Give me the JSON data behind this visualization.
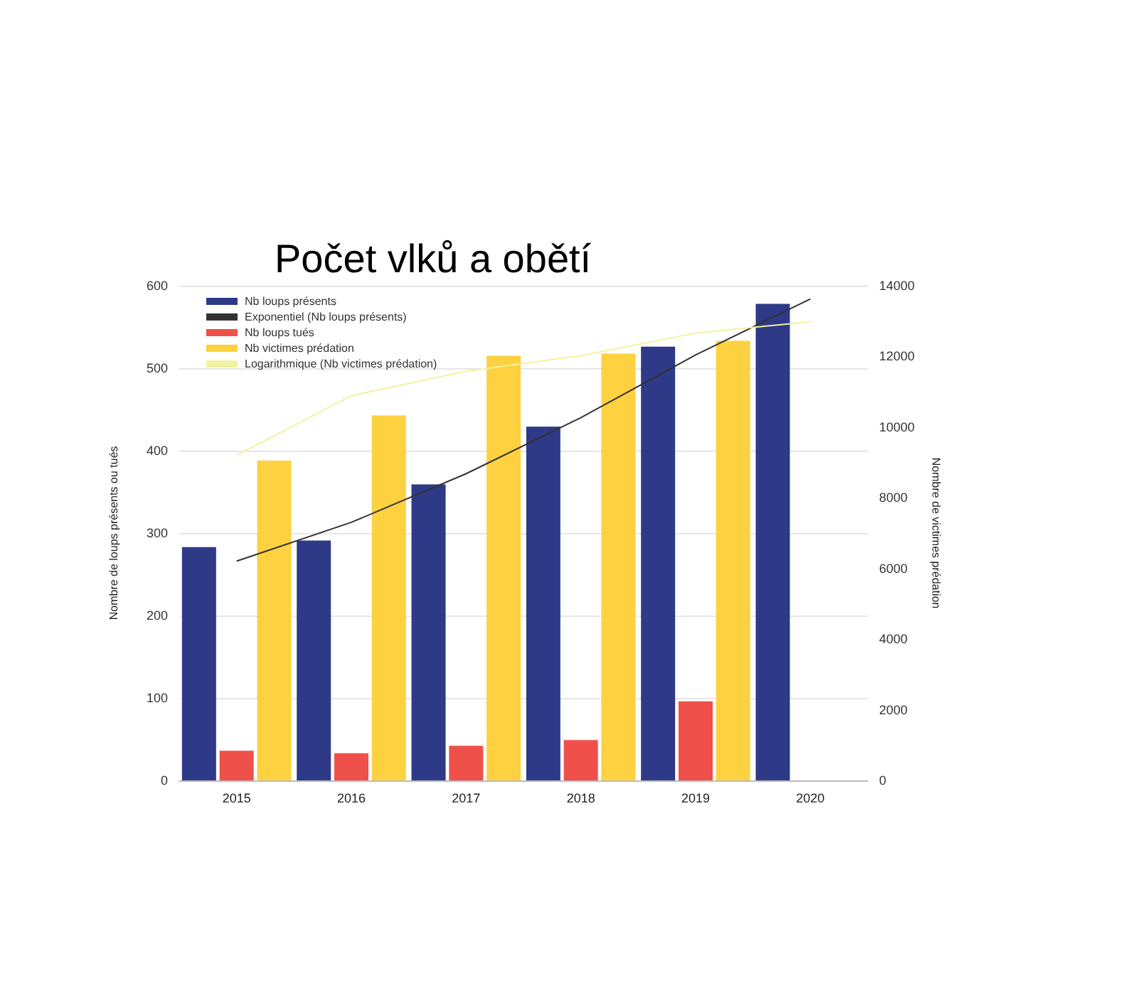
{
  "chart_data": {
    "type": "bar",
    "title": "Počet vlků a obětí",
    "ylabel": "Nombre de loups présents ou tués",
    "y2label": "Nombre de victimes prédation",
    "categories": [
      "2015",
      "2016",
      "2017",
      "2018",
      "2019",
      "2020"
    ],
    "series": [
      {
        "name": "Nb loups présents",
        "color": "#2e3a87",
        "values": [
          283,
          291,
          359,
          429,
          526,
          578
        ]
      },
      {
        "name": "Exponentiel (Nb loups présents)",
        "type": "line",
        "color": "#333333",
        "marker": "none",
        "values": [
          266,
          313,
          372,
          440,
          516,
          584
        ]
      },
      {
        "name": "Nb loups tués",
        "color": "#f0504a",
        "values": [
          36,
          33,
          42,
          49,
          96,
          null
        ]
      },
      {
        "name": "Nb victimes prédation",
        "color": "#fdd13f",
        "axis": "y2",
        "values": [
          9050,
          10330,
          12020,
          12080,
          12440,
          null
        ]
      },
      {
        "name": "Logarithmique (Nb victimes prédation)",
        "type": "line",
        "color": "#f3f2a0",
        "marker": "none",
        "axis": "y2",
        "values": [
          9200,
          10890,
          11580,
          12020,
          12660,
          12980
        ]
      }
    ],
    "ylim": [
      0,
      600
    ],
    "yticks": [
      0,
      100,
      200,
      300,
      400,
      500,
      600
    ],
    "y2lim": [
      0,
      14000
    ],
    "y2ticks": [
      0,
      2000,
      4000,
      6000,
      8000,
      10000,
      12000,
      14000
    ],
    "grid": "y",
    "legend": "top left"
  }
}
